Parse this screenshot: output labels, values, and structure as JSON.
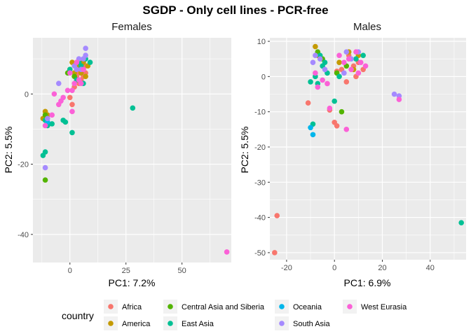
{
  "title": "SGDP - Only cell lines - PCR-free",
  "legend": {
    "title": "country",
    "placement": "bottom",
    "entries": [
      {
        "label": "Africa",
        "color": "#F8766D"
      },
      {
        "label": "America",
        "color": "#C49A00"
      },
      {
        "label": "Central Asia and Siberia",
        "color": "#53B400"
      },
      {
        "label": "East Asia",
        "color": "#00C094"
      },
      {
        "label": "Oceania",
        "color": "#00B6EB"
      },
      {
        "label": "South Asia",
        "color": "#A58AFF"
      },
      {
        "label": "West Eurasia",
        "color": "#FB61D7"
      }
    ]
  },
  "chart_data": [
    {
      "type": "scatter",
      "title": "Females",
      "xlabel": "PC1: 7.2%",
      "ylabel": "PC2: 5.5%",
      "xlim": [
        -16.5,
        72
      ],
      "ylim": [
        -48,
        16
      ],
      "xticks": [
        0,
        25,
        50
      ],
      "yticks": [
        -40,
        -20,
        0
      ],
      "grid": true,
      "series": [
        {
          "name": "Africa",
          "points": [
            [
              3,
              8
            ],
            [
              4,
              6
            ],
            [
              5,
              9
            ],
            [
              5,
              4
            ],
            [
              6,
              7
            ],
            [
              7,
              8
            ],
            [
              3,
              5
            ],
            [
              4,
              3
            ],
            [
              6,
              5
            ],
            [
              1,
              -3
            ],
            [
              0,
              -1
            ],
            [
              2,
              2
            ],
            [
              7,
              6
            ]
          ]
        },
        {
          "name": "America",
          "points": [
            [
              1,
              9
            ],
            [
              3,
              7
            ],
            [
              6,
              9
            ],
            [
              8,
              8
            ],
            [
              7,
              5
            ],
            [
              -11,
              -5
            ],
            [
              -12,
              -7
            ],
            [
              -10,
              -6
            ],
            [
              4,
              8
            ],
            [
              5,
              6
            ],
            [
              2,
              6
            ]
          ]
        },
        {
          "name": "Central Asia and Siberia",
          "points": [
            [
              -11,
              -24.5
            ],
            [
              0,
              7
            ],
            [
              2,
              5
            ],
            [
              -1,
              6
            ],
            [
              -11,
              -6
            ]
          ]
        },
        {
          "name": "East Asia",
          "points": [
            [
              9,
              9
            ],
            [
              7,
              10
            ],
            [
              -12,
              -17.5
            ],
            [
              -11,
              -16.5
            ],
            [
              -8,
              -8.5
            ],
            [
              -10,
              -9
            ],
            [
              -11,
              -7.5
            ],
            [
              -3,
              -7.5
            ],
            [
              -2,
              -8
            ],
            [
              1,
              -11
            ],
            [
              0,
              7
            ],
            [
              3,
              4
            ],
            [
              5,
              8
            ],
            [
              28,
              -4
            ],
            [
              6,
              3
            ],
            [
              4,
              9
            ]
          ]
        },
        {
          "name": "Oceania",
          "points": [
            [
              -10,
              -8
            ]
          ]
        },
        {
          "name": "South Asia",
          "points": [
            [
              7,
              13
            ],
            [
              7,
              11
            ],
            [
              -11,
              -21
            ],
            [
              -5,
              3
            ],
            [
              -10,
              -7
            ],
            [
              4,
              10
            ],
            [
              2,
              8
            ],
            [
              5,
              7
            ],
            [
              6,
              10
            ],
            [
              3,
              7
            ]
          ]
        },
        {
          "name": "West Eurasia",
          "points": [
            [
              70,
              -45
            ],
            [
              0,
              6
            ],
            [
              2,
              3
            ],
            [
              -1,
              1
            ],
            [
              -3,
              -1
            ],
            [
              -5,
              -3
            ],
            [
              -8,
              -6
            ],
            [
              -11,
              -9
            ],
            [
              1,
              -5
            ],
            [
              -7,
              0
            ],
            [
              3,
              9
            ],
            [
              6,
              7
            ],
            [
              5,
              3
            ],
            [
              4,
              4
            ],
            [
              -4,
              -2
            ],
            [
              1,
              1
            ]
          ]
        }
      ]
    },
    {
      "type": "scatter",
      "title": "Males",
      "xlabel": "PC1: 6.9%",
      "ylabel": "PC2: 5.5%",
      "xlim": [
        -27,
        55
      ],
      "ylim": [
        -52,
        11
      ],
      "xticks": [
        -20,
        0,
        20,
        40
      ],
      "yticks": [
        -50,
        -40,
        -30,
        -20,
        -10,
        0,
        10
      ],
      "grid": true,
      "series": [
        {
          "name": "Africa",
          "points": [
            [
              -24,
              -39.5
            ],
            [
              -25,
              -50
            ],
            [
              -11,
              -7.5
            ],
            [
              -2,
              -9.5
            ],
            [
              0,
              -13
            ],
            [
              1,
              -14
            ],
            [
              5,
              -1.5
            ],
            [
              3,
              2
            ],
            [
              8,
              3
            ],
            [
              10,
              4
            ],
            [
              12,
              2
            ],
            [
              1,
              1.5
            ],
            [
              6,
              6
            ],
            [
              9,
              0
            ]
          ]
        },
        {
          "name": "America",
          "points": [
            [
              -8,
              8.5
            ],
            [
              -7,
              6
            ],
            [
              10,
              6
            ],
            [
              6,
              7
            ],
            [
              2,
              4
            ],
            [
              8,
              2
            ]
          ]
        },
        {
          "name": "Central Asia and Siberia",
          "points": [
            [
              3,
              -10
            ],
            [
              -7,
              7
            ],
            [
              -5,
              5
            ],
            [
              1,
              1
            ],
            [
              5,
              3
            ]
          ]
        },
        {
          "name": "East Asia",
          "points": [
            [
              -10,
              -1.5
            ],
            [
              -9,
              -13.5
            ],
            [
              0,
              -7
            ],
            [
              -7,
              -2
            ],
            [
              -8,
              0
            ],
            [
              -6,
              6
            ],
            [
              -4,
              4
            ],
            [
              -3,
              1
            ],
            [
              53,
              -41.5
            ],
            [
              2,
              0
            ],
            [
              9,
              5
            ],
            [
              12,
              6
            ],
            [
              -5,
              3
            ]
          ]
        },
        {
          "name": "Oceania",
          "points": [
            [
              -10,
              -14.5
            ],
            [
              -9,
              -16.5
            ]
          ]
        },
        {
          "name": "South Asia",
          "points": [
            [
              25,
              -5
            ],
            [
              27,
              -5.5
            ],
            [
              -8,
              6
            ],
            [
              -6,
              5
            ],
            [
              -9,
              4
            ],
            [
              5,
              7
            ],
            [
              7,
              5
            ],
            [
              10,
              7
            ],
            [
              -4,
              2
            ],
            [
              4,
              1
            ]
          ]
        },
        {
          "name": "West Eurasia",
          "points": [
            [
              27,
              -6.5
            ],
            [
              5,
              -15
            ],
            [
              -7,
              -3
            ],
            [
              -5,
              -1
            ],
            [
              -3,
              -2
            ],
            [
              -8,
              1
            ],
            [
              2,
              6
            ],
            [
              6,
              5
            ],
            [
              9,
              7
            ],
            [
              10,
              1
            ],
            [
              13,
              3
            ],
            [
              -2,
              -9
            ],
            [
              4,
              4
            ],
            [
              7,
              2
            ],
            [
              11,
              4
            ]
          ]
        }
      ]
    }
  ]
}
